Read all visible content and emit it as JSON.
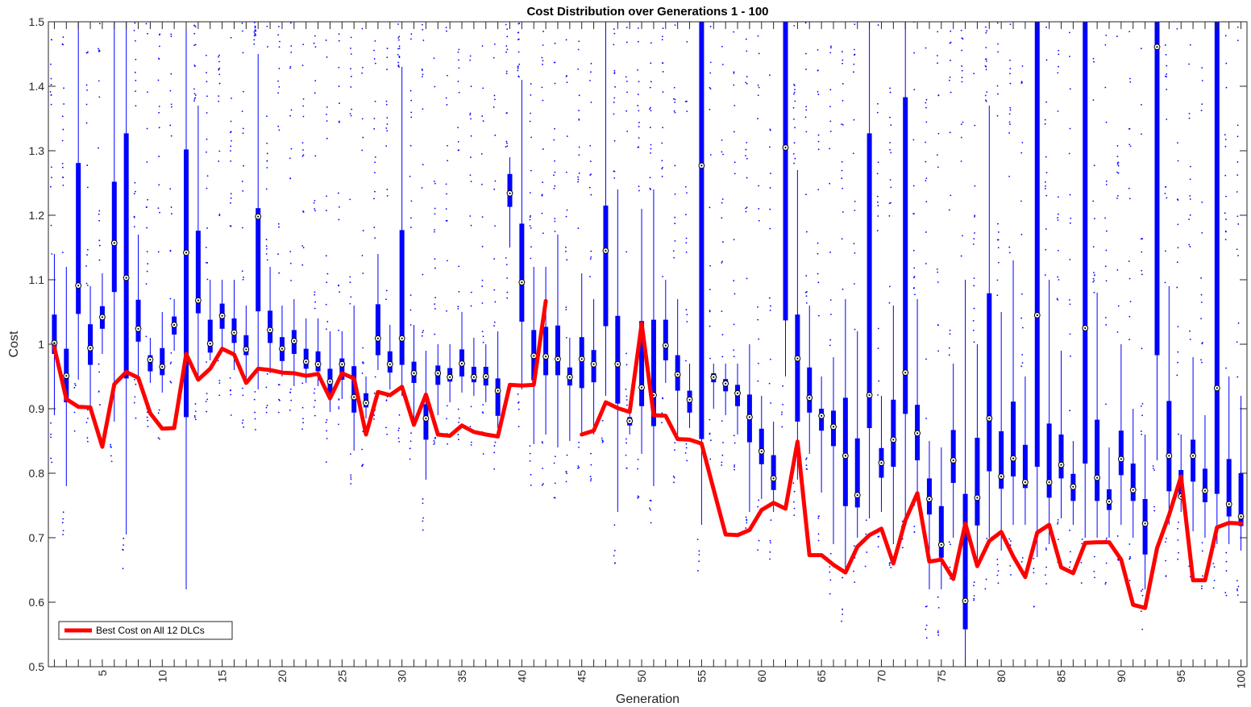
{
  "chart_data": {
    "type": "box",
    "title": "Cost Distribution over Generations 1 - 100",
    "xlabel": "Generation",
    "ylabel": "Cost",
    "xlim": [
      0.5,
      100.5
    ],
    "ylim": [
      0.5,
      1.5
    ],
    "yticks": [
      0.5,
      0.6,
      0.7,
      0.8,
      0.9,
      1,
      1.1,
      1.2,
      1.3,
      1.4,
      1.5
    ],
    "ytick_labels": [
      "0.5",
      "0.6",
      "0.7",
      "0.8",
      "0.9",
      "1",
      "1.1",
      "1.2",
      "1.3",
      "1.4",
      "1.5"
    ],
    "xticks": [
      5,
      10,
      15,
      20,
      25,
      30,
      35,
      40,
      45,
      50,
      55,
      60,
      65,
      70,
      75,
      80,
      85,
      90,
      95,
      100
    ],
    "xtick_labels": [
      "5",
      "10",
      "15",
      "20",
      "25",
      "30",
      "35",
      "40",
      "45",
      "50",
      "55",
      "60",
      "65",
      "70",
      "75",
      "80",
      "85",
      "90",
      "95",
      "100"
    ],
    "grid": false,
    "legend": {
      "position": "bottom-left",
      "entries": [
        "Best Cost on All 12 DLCs"
      ]
    },
    "colors": {
      "box": "#0000ff",
      "best_line": "#ff0000",
      "median_marker": "#000000"
    },
    "medians": [
      1.002,
      0.951,
      1.091,
      0.994,
      1.042,
      1.157,
      1.103,
      1.024,
      0.976,
      0.965,
      1.03,
      1.142,
      1.068,
      1.001,
      1.044,
      1.018,
      0.992,
      1.198,
      1.022,
      0.993,
      1.005,
      0.973,
      0.969,
      0.942,
      0.969,
      0.918,
      0.909,
      1.009,
      0.969,
      1.009,
      0.955,
      0.885,
      0.955,
      0.949,
      0.97,
      0.949,
      0.95,
      0.928,
      1.234,
      1.096,
      0.982,
      0.981,
      0.977,
      0.949,
      0.977,
      0.969,
      1.145,
      0.969,
      0.881,
      0.933,
      0.921,
      0.998,
      0.953,
      0.914,
      1.277,
      0.949,
      0.939,
      0.924,
      0.887,
      0.834,
      0.792,
      1.305,
      0.978,
      0.917,
      0.889,
      0.872,
      0.827,
      0.766,
      0.921,
      0.816,
      0.852,
      0.956,
      0.862,
      0.76,
      0.689,
      0.82,
      0.602,
      0.762,
      0.885,
      0.795,
      0.823,
      0.786,
      1.045,
      0.786,
      0.813,
      0.779,
      1.025,
      0.793,
      0.756,
      0.822,
      0.774,
      0.722,
      1.461,
      0.827,
      0.764,
      0.827,
      0.773,
      0.932,
      0.752,
      0.733
    ],
    "q1": [
      0.985,
      0.91,
      1.047,
      0.968,
      1.024,
      1.081,
      0.947,
      1.004,
      0.958,
      0.952,
      1.015,
      0.887,
      1.048,
      0.987,
      1.024,
      1.002,
      0.983,
      1.051,
      1.002,
      0.974,
      0.985,
      0.962,
      0.958,
      0.925,
      0.945,
      0.894,
      0.902,
      0.983,
      0.956,
      0.968,
      0.94,
      0.852,
      0.937,
      0.942,
      0.95,
      0.941,
      0.936,
      0.889,
      1.213,
      1.035,
      0.944,
      0.952,
      0.952,
      0.936,
      0.932,
      0.941,
      1.028,
      0.908,
      0.874,
      0.904,
      0.873,
      0.975,
      0.928,
      0.894,
      0.853,
      0.941,
      0.927,
      0.904,
      0.848,
      0.814,
      0.774,
      1.037,
      0.88,
      0.894,
      0.866,
      0.842,
      0.749,
      0.747,
      0.87,
      0.793,
      0.81,
      0.892,
      0.82,
      0.736,
      0.669,
      0.785,
      0.558,
      0.719,
      0.803,
      0.776,
      0.795,
      0.777,
      0.81,
      0.762,
      0.792,
      0.757,
      0.815,
      0.757,
      0.743,
      0.797,
      0.757,
      0.674,
      0.983,
      0.772,
      0.761,
      0.787,
      0.755,
      0.768,
      0.733,
      0.718
    ],
    "q3": [
      1.046,
      0.993,
      1.281,
      1.031,
      1.059,
      1.252,
      1.327,
      1.069,
      0.983,
      0.994,
      1.043,
      1.302,
      1.176,
      1.038,
      1.063,
      1.04,
      1.014,
      1.211,
      1.052,
      1.011,
      1.022,
      0.993,
      0.989,
      0.962,
      0.978,
      0.966,
      0.924,
      1.062,
      0.989,
      1.177,
      0.973,
      0.907,
      0.967,
      0.963,
      0.992,
      0.965,
      0.965,
      0.947,
      1.264,
      1.187,
      1.022,
      1.027,
      1.029,
      0.964,
      1.011,
      0.991,
      1.215,
      1.044,
      0.887,
      1.036,
      1.038,
      1.038,
      0.983,
      0.928,
      1.5,
      0.955,
      0.946,
      0.937,
      0.922,
      0.869,
      0.828,
      1.5,
      1.046,
      0.964,
      0.9,
      0.897,
      0.917,
      0.854,
      1.327,
      0.839,
      0.914,
      1.383,
      0.906,
      0.792,
      0.749,
      0.867,
      0.768,
      0.855,
      1.079,
      0.865,
      0.911,
      0.844,
      1.5,
      0.877,
      0.86,
      0.799,
      1.5,
      0.883,
      0.775,
      0.866,
      0.815,
      0.76,
      1.5,
      0.912,
      0.805,
      0.852,
      0.807,
      1.5,
      0.822,
      0.8
    ],
    "whisker_lo": [
      0.89,
      0.78,
      0.945,
      0.9,
      0.985,
      0.88,
      0.705,
      0.95,
      0.94,
      0.925,
      0.99,
      0.62,
      0.945,
      0.975,
      0.99,
      0.96,
      0.94,
      0.93,
      0.955,
      0.95,
      0.935,
      0.94,
      0.935,
      0.895,
      0.915,
      0.835,
      0.885,
      0.96,
      0.93,
      0.92,
      0.875,
      0.79,
      0.89,
      0.91,
      0.925,
      0.92,
      0.91,
      0.87,
      1.15,
      0.93,
      0.845,
      0.86,
      0.84,
      0.85,
      0.86,
      0.86,
      0.92,
      0.74,
      0.86,
      0.83,
      0.78,
      0.94,
      0.86,
      0.87,
      0.72,
      0.9,
      0.89,
      0.86,
      0.74,
      0.76,
      0.74,
      0.95,
      0.79,
      0.83,
      0.77,
      0.69,
      0.65,
      0.7,
      0.73,
      0.74,
      0.69,
      0.73,
      0.76,
      0.62,
      0.62,
      0.7,
      0.5,
      0.66,
      0.7,
      0.68,
      0.72,
      0.72,
      0.67,
      0.69,
      0.73,
      0.72,
      0.7,
      0.7,
      0.7,
      0.72,
      0.7,
      0.62,
      0.82,
      0.72,
      0.74,
      0.71,
      0.7,
      0.69,
      0.69,
      0.68
    ],
    "whisker_hi": [
      1.14,
      1.12,
      1.5,
      1.09,
      1.11,
      1.5,
      1.5,
      1.17,
      1.01,
      1.05,
      1.07,
      1.5,
      1.37,
      1.1,
      1.1,
      1.1,
      1.06,
      1.45,
      1.12,
      1.06,
      1.07,
      1.04,
      1.04,
      1.02,
      1.02,
      1.06,
      0.95,
      1.14,
      1.03,
      1.43,
      1.03,
      0.99,
      1.0,
      1.0,
      1.05,
      1.01,
      1.0,
      1.02,
      1.29,
      1.41,
      1.12,
      1.12,
      1.17,
      1.01,
      1.11,
      1.07,
      1.5,
      1.24,
      0.9,
      1.21,
      1.24,
      1.1,
      1.07,
      0.97,
      1.5,
      0.97,
      0.97,
      0.97,
      1.0,
      0.92,
      0.88,
      1.5,
      1.27,
      1.06,
      0.95,
      0.98,
      1.07,
      1.02,
      1.5,
      0.92,
      1.06,
      1.5,
      1.07,
      0.85,
      0.84,
      0.97,
      1.1,
      1.0,
      1.37,
      1.05,
      1.13,
      0.95,
      1.5,
      1.1,
      0.99,
      0.85,
      1.5,
      1.08,
      0.84,
      1.0,
      0.9,
      0.86,
      1.5,
      1.09,
      0.86,
      0.98,
      0.89,
      1.5,
      0.95,
      0.92
    ],
    "best_cost": [
      0.995,
      0.915,
      0.903,
      0.902,
      0.841,
      0.938,
      0.957,
      0.948,
      0.893,
      0.869,
      0.87,
      0.985,
      0.945,
      0.962,
      0.993,
      0.984,
      0.94,
      0.962,
      0.96,
      0.956,
      0.955,
      0.951,
      0.954,
      0.916,
      0.955,
      0.947,
      0.86,
      0.926,
      0.921,
      0.934,
      0.875,
      0.922,
      0.86,
      0.858,
      0.874,
      0.864,
      0.86,
      0.857,
      0.937,
      0.936,
      0.937,
      1.067,
      null,
      null,
      0.86,
      0.866,
      0.91,
      0.901,
      0.895,
      1.032,
      0.89,
      0.889,
      0.853,
      0.852,
      0.846,
      0.775,
      0.705,
      0.704,
      0.712,
      0.743,
      0.754,
      0.745,
      0.849,
      0.673,
      0.673,
      0.658,
      0.646,
      0.686,
      0.704,
      0.714,
      0.66,
      0.727,
      0.769,
      0.663,
      0.666,
      0.636,
      0.722,
      0.656,
      0.695,
      0.709,
      0.671,
      0.639,
      0.708,
      0.72,
      0.654,
      0.645,
      0.692,
      0.693,
      0.693,
      0.666,
      0.596,
      0.591,
      0.684,
      0.735,
      0.795,
      0.634,
      0.634,
      0.716,
      0.723,
      0.722
    ]
  }
}
